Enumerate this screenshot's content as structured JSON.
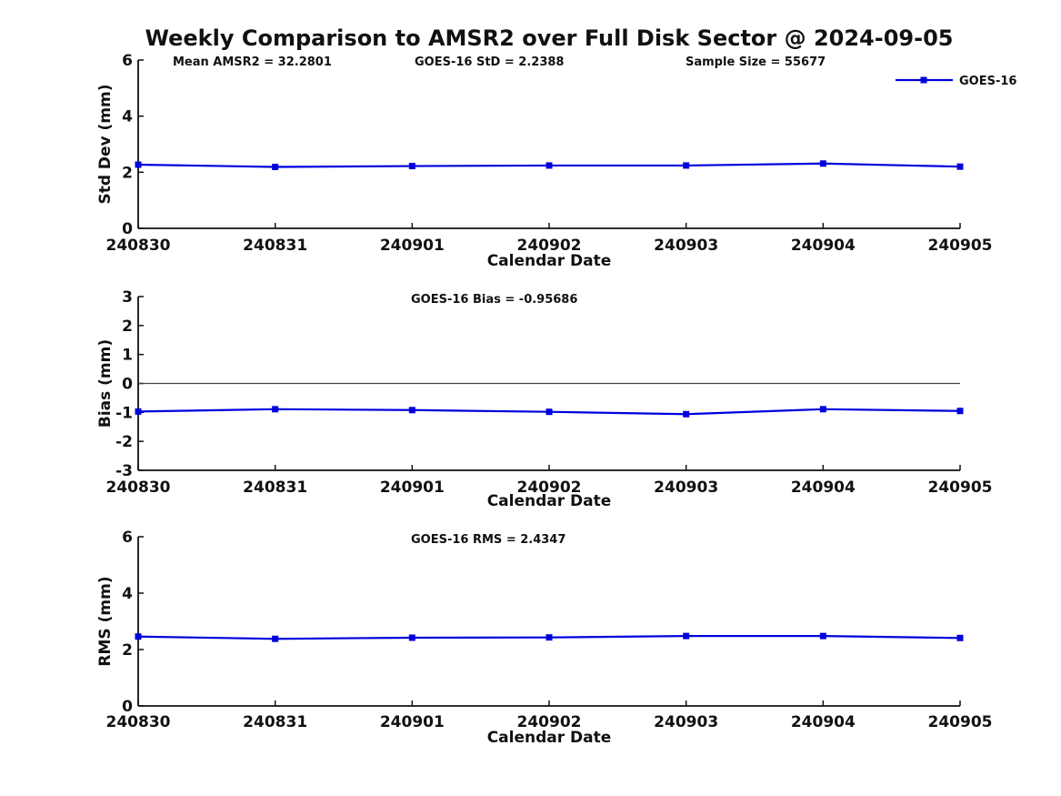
{
  "chart_title": "Weekly Comparison to AMSR2 over Full Disk Sector @ 2024-09-05",
  "colors": {
    "line": "#0000DD",
    "marker": "#0000DD",
    "axis": "#111111",
    "zero_line": "#444444",
    "text": "#111111",
    "background": "#ffffff"
  },
  "legend": {
    "label": "GOES-16",
    "position": "top-right",
    "marker": "filled-square"
  },
  "chart_data": [
    {
      "type": "line",
      "name": "stddev",
      "categories": [
        "240830",
        "240831",
        "240901",
        "240902",
        "240903",
        "240904",
        "240905"
      ],
      "series": [
        {
          "name": "GOES-16",
          "values": [
            2.27,
            2.19,
            2.22,
            2.24,
            2.24,
            2.31,
            2.2
          ]
        }
      ],
      "ylabel": "Std Dev (mm)",
      "xlabel": "Calendar Date",
      "ylim": [
        0,
        6
      ],
      "yticks": [
        0,
        2,
        4,
        6
      ],
      "grid": false,
      "zero_line": false,
      "show_legend": true,
      "annotations": [
        "Mean AMSR2 = 32.2801",
        "GOES-16 StD = 2.2388",
        "Sample Size = 55677"
      ]
    },
    {
      "type": "line",
      "name": "bias",
      "categories": [
        "240830",
        "240831",
        "240901",
        "240902",
        "240903",
        "240904",
        "240905"
      ],
      "series": [
        {
          "name": "GOES-16",
          "values": [
            -0.97,
            -0.89,
            -0.92,
            -0.98,
            -1.06,
            -0.89,
            -0.95
          ]
        }
      ],
      "ylabel": "Bias (mm)",
      "xlabel": "Calendar Date",
      "ylim": [
        -3,
        3
      ],
      "yticks": [
        -3,
        -2,
        -1,
        0,
        1,
        2,
        3
      ],
      "grid": false,
      "zero_line": true,
      "show_legend": false,
      "annotations": [
        "GOES-16 Bias  = -0.95686"
      ]
    },
    {
      "type": "line",
      "name": "rms",
      "categories": [
        "240830",
        "240831",
        "240901",
        "240902",
        "240903",
        "240904",
        "240905"
      ],
      "series": [
        {
          "name": "GOES-16",
          "values": [
            2.46,
            2.38,
            2.42,
            2.43,
            2.48,
            2.48,
            2.41
          ]
        }
      ],
      "ylabel": "RMS (mm)",
      "xlabel": "Calendar Date",
      "ylim": [
        0,
        6
      ],
      "yticks": [
        0,
        2,
        4,
        6
      ],
      "grid": false,
      "zero_line": false,
      "show_legend": false,
      "annotations": [
        "GOES-16 RMS = 2.4347"
      ]
    }
  ]
}
